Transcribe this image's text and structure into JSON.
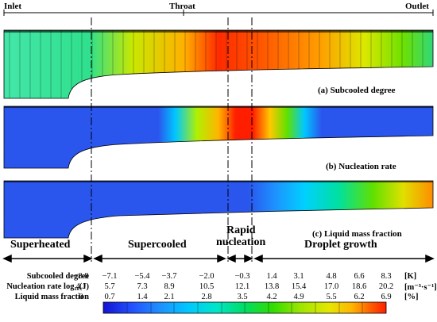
{
  "header": {
    "inlet": "Inlet",
    "throat": "Throat",
    "outlet": "Outlet"
  },
  "panels": [
    {
      "caption": "(a) Subcooled degree"
    },
    {
      "caption": "(b) Nucleation rate"
    },
    {
      "caption": "(c) Liquid mass fraction"
    }
  ],
  "phases": [
    "Superheated",
    "Supercooled",
    "Rapid nucleation",
    "Droplet growth"
  ],
  "rapid_lines": [
    "Rapid",
    "nucleation"
  ],
  "table": {
    "rows": [
      {
        "label": "Subcooled degree",
        "values": [
          "−8.8",
          "−7.1",
          "−5.4",
          "−3.7",
          "−2.0",
          "−0.3",
          "1.4",
          "3.1",
          "4.8",
          "6.6",
          "8.3"
        ],
        "unit": "[K]"
      },
      {
        "label": "Nucleation rate log₁₀(J)",
        "values": [
          "4.1",
          "5.7",
          "7.3",
          "8.9",
          "10.5",
          "12.1",
          "13.8",
          "15.4",
          "17.0",
          "18.6",
          "20.2"
        ],
        "unit": "[m⁻³·s⁻¹]"
      },
      {
        "label": "Liquid mass fraction",
        "values": [
          "0",
          "0.7",
          "1.4",
          "2.1",
          "2.8",
          "3.5",
          "4.2",
          "4.9",
          "5.5",
          "6.2",
          "6.9"
        ],
        "unit": "[%]"
      }
    ]
  },
  "colors": {
    "colorbar": [
      "#1414d2",
      "#2350ff",
      "#1e90ff",
      "#00c8ff",
      "#00e6c8",
      "#00dc64",
      "#32dc00",
      "#a0e600",
      "#e6e600",
      "#ffb400",
      "#ff6400",
      "#ff1e00"
    ]
  }
}
